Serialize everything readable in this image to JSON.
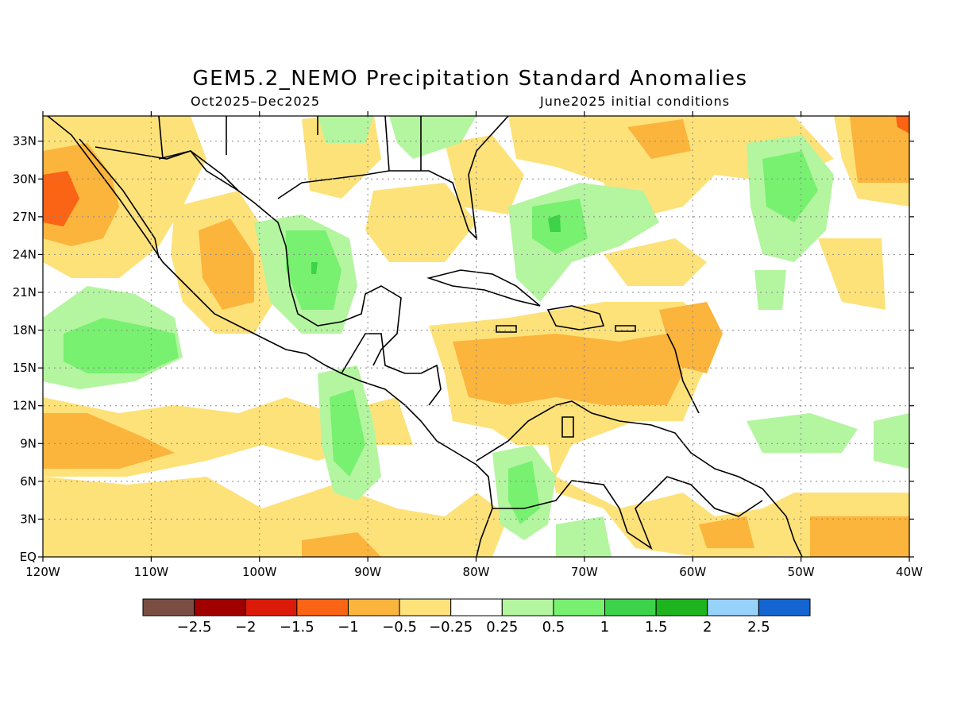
{
  "header": {
    "title": "GEM5.2_NEMO Precipitation Standard Anomalies",
    "period": "Oct2025–Dec2025",
    "init": "June2025 initial conditions"
  },
  "map": {
    "lon_range": [
      -120,
      -40
    ],
    "lat_range": [
      0,
      35
    ],
    "grid": "dotted",
    "lat_ticks": [
      {
        "value": 33,
        "label": "33N"
      },
      {
        "value": 30,
        "label": "30N"
      },
      {
        "value": 27,
        "label": "27N"
      },
      {
        "value": 24,
        "label": "24N"
      },
      {
        "value": 21,
        "label": "21N"
      },
      {
        "value": 18,
        "label": "18N"
      },
      {
        "value": 15,
        "label": "15N"
      },
      {
        "value": 12,
        "label": "12N"
      },
      {
        "value": 9,
        "label": "9N"
      },
      {
        "value": 6,
        "label": "6N"
      },
      {
        "value": 3,
        "label": "3N"
      },
      {
        "value": 0,
        "label": "EQ"
      }
    ],
    "lon_ticks": [
      {
        "value": -120,
        "label": "120W"
      },
      {
        "value": -110,
        "label": "110W"
      },
      {
        "value": -100,
        "label": "100W"
      },
      {
        "value": -90,
        "label": "90W"
      },
      {
        "value": -80,
        "label": "80W"
      },
      {
        "value": -70,
        "label": "70W"
      },
      {
        "value": -60,
        "label": "60W"
      },
      {
        "value": -50,
        "label": "50W"
      },
      {
        "value": -40,
        "label": "40W"
      }
    ]
  },
  "colorbar": {
    "colors": [
      "#7a4e42",
      "#a00000",
      "#dc1a0a",
      "#fa6414",
      "#fbb43c",
      "#fde27a",
      "#ffffff",
      "#b4f5a0",
      "#78f070",
      "#3cd24a",
      "#1eb41e",
      "#96d2fa",
      "#1464d2"
    ],
    "labels": [
      "−2.5",
      "−2",
      "−1.5",
      "−1",
      "−0.5",
      "−0.25",
      "0.25",
      "0.5",
      "1",
      "1.5",
      "2",
      "2.5"
    ]
  },
  "palette": {
    "light_orange": "#fde27a",
    "orange": "#fbb43c",
    "dark_orange": "#fa6414",
    "light_green": "#b4f5a0",
    "green": "#78f070",
    "dark_green": "#3cd24a"
  }
}
